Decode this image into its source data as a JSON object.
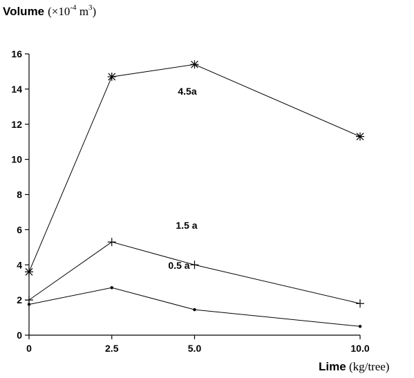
{
  "chart_data": {
    "type": "line",
    "title": "",
    "ylabel": {
      "main": "Volume",
      "open": "(×10",
      "exp": "-4",
      "unit": " m",
      "unit_exp": "3",
      "close": ")"
    },
    "xlabel": {
      "main": "Lime",
      "unit": " (kg/tree)"
    },
    "x": [
      0,
      2.5,
      5.0,
      10.0
    ],
    "x_tick_labels": [
      "0",
      "2.5",
      "5.0",
      "10.0"
    ],
    "y_ticks": [
      0,
      2,
      4,
      6,
      8,
      10,
      12,
      14,
      16
    ],
    "y_tick_labels": [
      "0",
      "2",
      "4",
      "6",
      "8",
      "10",
      "12",
      "14",
      "16"
    ],
    "ylim": [
      0,
      16
    ],
    "xlim": [
      0,
      10
    ],
    "grid": false,
    "legend": "none",
    "series": [
      {
        "name": "4.5a",
        "marker": "asterisk",
        "values": [
          3.6,
          14.7,
          15.4,
          11.3
        ]
      },
      {
        "name": "1.5 a",
        "marker": "plus",
        "values": [
          2.0,
          5.3,
          4.0,
          1.8
        ]
      },
      {
        "name": "0.5 a",
        "marker": "dot",
        "values": [
          1.75,
          2.7,
          1.45,
          0.5
        ]
      }
    ]
  }
}
